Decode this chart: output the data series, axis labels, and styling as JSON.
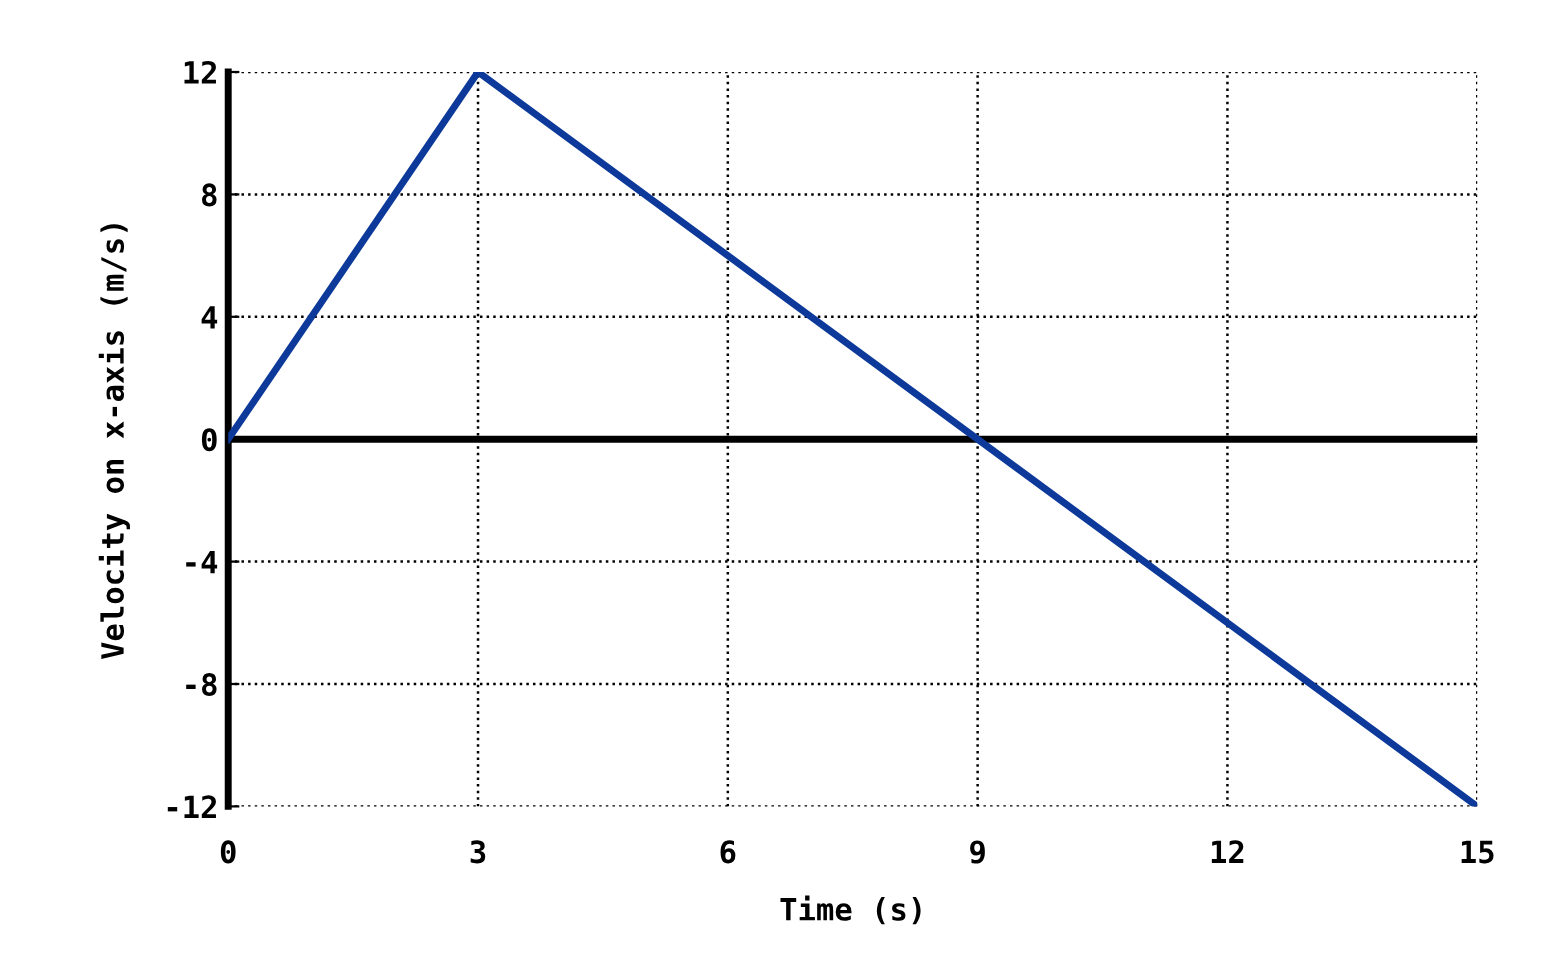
{
  "chart_data": {
    "type": "line",
    "xlabel": "Time (s)",
    "ylabel": "Velocity on x-axis (m/s)",
    "x": [
      0,
      3,
      15
    ],
    "series": [
      {
        "color": "#0d3a9a",
        "values": [
          0,
          12,
          -12
        ]
      }
    ],
    "xlim": [
      0,
      15
    ],
    "xticks": [
      0,
      3,
      6,
      9,
      12,
      15
    ],
    "ylim": [
      -12,
      12
    ],
    "yticks": [
      -12,
      -8,
      -4,
      0,
      4,
      8,
      12
    ],
    "grid": true,
    "line_style": "solid",
    "ref_lines": [
      {
        "axis": "y",
        "value": 0,
        "color": "#000000",
        "line_style": "solid"
      }
    ]
  }
}
